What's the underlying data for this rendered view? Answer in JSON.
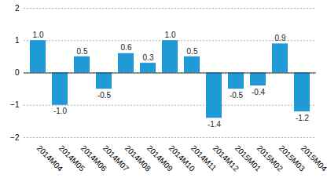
{
  "chart_data": {
    "type": "bar",
    "categories": [
      "2014M04",
      "2014M05",
      "2014M06",
      "2014M07",
      "2014M08",
      "2014M09",
      "2014M10",
      "2014M11",
      "2014M12",
      "2015M01",
      "2015M02",
      "2015M03",
      "2015M04"
    ],
    "values": [
      1.0,
      -1.0,
      0.5,
      -0.5,
      0.6,
      0.3,
      1.0,
      0.5,
      -1.4,
      -0.5,
      -0.4,
      0.9,
      -1.2
    ],
    "value_labels": [
      "1.0",
      "-1.0",
      "0.5",
      "-0.5",
      "0.6",
      "0.3",
      "1.0",
      "0.5",
      "-1.4",
      "-0.5",
      "-0.4",
      "0.9",
      "-1.2"
    ],
    "color": "#1f9ad6",
    "ylim": [
      -2,
      2
    ],
    "yticks": [
      -2,
      -1,
      0,
      1,
      2
    ],
    "grid": true,
    "data_labels": true
  }
}
